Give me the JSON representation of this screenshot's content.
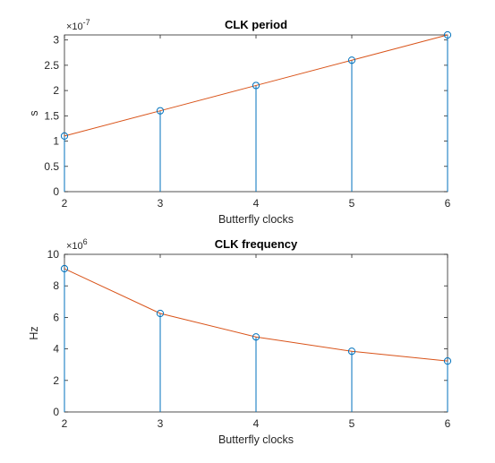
{
  "chart_data": [
    {
      "type": "stem",
      "title": "CLK period",
      "xlabel": "Butterfly clocks",
      "ylabel": "s",
      "exponent_base": "×10",
      "exponent_power": "-7",
      "x": [
        2,
        3,
        4,
        5,
        6
      ],
      "xlim": [
        2,
        6
      ],
      "xticks": [
        "2",
        "3",
        "4",
        "5",
        "6"
      ],
      "ylim": [
        0,
        3.1
      ],
      "yticks": [
        "0",
        "0.5",
        "1",
        "1.5",
        "2",
        "2.5",
        "3"
      ],
      "ytick_values": [
        0,
        0.5,
        1,
        1.5,
        2,
        2.5,
        3
      ],
      "series": [
        {
          "kind": "stem",
          "values": [
            1.1,
            1.6,
            2.1,
            2.6,
            3.1
          ],
          "color": "#0072BD"
        },
        {
          "kind": "line",
          "values": [
            1.1,
            1.6,
            2.1,
            2.6,
            3.1
          ],
          "color": "#D95319"
        }
      ],
      "grid": false
    },
    {
      "type": "stem",
      "title": "CLK frequency",
      "xlabel": "Butterfly clocks",
      "ylabel": "Hz",
      "exponent_base": "×10",
      "exponent_power": "6",
      "x": [
        2,
        3,
        4,
        5,
        6
      ],
      "xlim": [
        2,
        6
      ],
      "xticks": [
        "2",
        "3",
        "4",
        "5",
        "6"
      ],
      "ylim": [
        0,
        10
      ],
      "yticks": [
        "0",
        "2",
        "4",
        "6",
        "8",
        "10"
      ],
      "ytick_values": [
        0,
        2,
        4,
        6,
        8,
        10
      ],
      "series": [
        {
          "kind": "stem",
          "values": [
            9.09,
            6.25,
            4.76,
            3.85,
            3.23
          ],
          "color": "#0072BD"
        },
        {
          "kind": "line",
          "values": [
            9.09,
            6.25,
            4.76,
            3.85,
            3.23
          ],
          "color": "#D95319"
        }
      ],
      "grid": false
    }
  ]
}
